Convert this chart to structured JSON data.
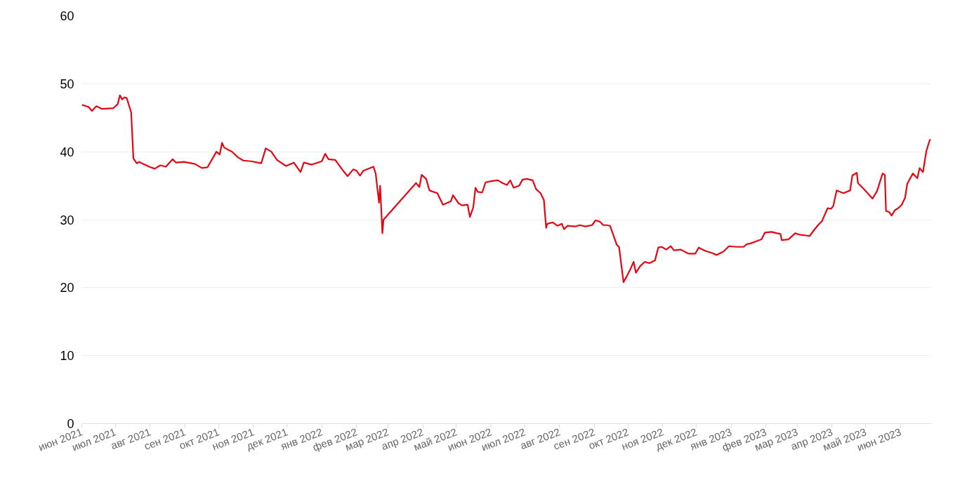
{
  "chart_data": {
    "type": "line",
    "x": [
      "2021-06-01",
      "2021-06-07",
      "2021-06-10",
      "2021-06-14",
      "2021-06-19",
      "2021-06-29",
      "2021-07-03",
      "2021-07-05",
      "2021-07-07",
      "2021-07-09",
      "2021-07-11",
      "2021-07-15",
      "2021-07-17",
      "2021-07-20",
      "2021-07-22",
      "2021-07-31",
      "2021-08-05",
      "2021-08-10",
      "2021-08-15",
      "2021-08-21",
      "2021-08-24",
      "2021-08-31",
      "2021-09-10",
      "2021-09-16",
      "2021-09-21",
      "2021-09-29",
      "2021-10-02",
      "2021-10-04",
      "2021-10-06",
      "2021-10-13",
      "2021-10-18",
      "2021-10-23",
      "2021-10-30",
      "2021-11-08",
      "2021-11-12",
      "2021-11-17",
      "2021-11-22",
      "2021-11-30",
      "2021-12-07",
      "2021-12-13",
      "2021-12-16",
      "2021-12-23",
      "2022-01-01",
      "2022-01-04",
      "2022-01-07",
      "2022-01-13",
      "2022-01-20",
      "2022-01-24",
      "2022-01-29",
      "2022-02-01",
      "2022-02-04",
      "2022-02-07",
      "2022-02-13",
      "2022-02-16",
      "2022-02-18",
      "2022-02-21",
      "2022-02-22",
      "2022-02-24",
      "2022-02-25",
      "2022-03-26",
      "2022-03-29",
      "2022-03-31",
      "2022-04-04",
      "2022-04-07",
      "2022-04-14",
      "2022-04-19",
      "2022-04-26",
      "2022-04-28",
      "2022-05-03",
      "2022-05-06",
      "2022-05-11",
      "2022-05-13",
      "2022-05-16",
      "2022-05-18",
      "2022-05-20",
      "2022-05-24",
      "2022-05-27",
      "2022-06-02",
      "2022-06-07",
      "2022-06-11",
      "2022-06-15",
      "2022-06-18",
      "2022-06-21",
      "2022-06-26",
      "2022-06-29",
      "2022-07-03",
      "2022-07-08",
      "2022-07-11",
      "2022-07-15",
      "2022-07-18",
      "2022-07-20",
      "2022-07-21",
      "2022-07-26",
      "2022-07-30",
      "2022-08-03",
      "2022-08-05",
      "2022-08-08",
      "2022-08-15",
      "2022-08-19",
      "2022-08-24",
      "2022-08-30",
      "2022-09-02",
      "2022-09-06",
      "2022-09-09",
      "2022-09-12",
      "2022-09-15",
      "2022-09-21",
      "2022-09-23",
      "2022-09-27",
      "2022-09-30",
      "2022-10-03",
      "2022-10-06",
      "2022-10-08",
      "2022-10-12",
      "2022-10-16",
      "2022-10-20",
      "2022-10-25",
      "2022-10-28",
      "2022-10-31",
      "2022-11-04",
      "2022-11-08",
      "2022-11-11",
      "2022-11-17",
      "2022-11-24",
      "2022-11-30",
      "2022-12-03",
      "2022-12-09",
      "2022-12-15",
      "2022-12-19",
      "2022-12-25",
      "2022-12-30",
      "2023-01-06",
      "2023-01-12",
      "2023-01-15",
      "2023-01-18",
      "2023-01-23",
      "2023-01-28",
      "2023-01-31",
      "2023-02-06",
      "2023-02-11",
      "2023-02-14",
      "2023-02-15",
      "2023-02-21",
      "2023-02-27",
      "2023-03-03",
      "2023-03-12",
      "2023-03-16",
      "2023-03-20",
      "2023-03-23",
      "2023-03-28",
      "2023-03-31",
      "2023-04-02",
      "2023-04-05",
      "2023-04-08",
      "2023-04-11",
      "2023-04-17",
      "2023-04-19",
      "2023-04-23",
      "2023-04-24",
      "2023-05-01",
      "2023-05-07",
      "2023-05-11",
      "2023-05-16",
      "2023-05-18",
      "2023-05-19",
      "2023-05-22",
      "2023-05-24",
      "2023-05-27",
      "2023-05-30",
      "2023-06-02",
      "2023-06-05",
      "2023-06-07",
      "2023-06-12",
      "2023-06-16",
      "2023-06-18",
      "2023-06-21",
      "2023-06-24",
      "2023-06-27",
      "2023-06-28"
    ],
    "series": [
      {
        "color": "#e30613",
        "values": [
          46.9,
          46.6,
          46.0,
          46.7,
          46.3,
          46.4,
          47.0,
          48.3,
          47.7,
          48.0,
          47.9,
          45.8,
          39.0,
          38.3,
          38.5,
          37.8,
          37.5,
          38.0,
          37.8,
          38.9,
          38.4,
          38.5,
          38.2,
          37.6,
          37.7,
          40.0,
          39.6,
          41.3,
          40.6,
          40.0,
          39.2,
          38.7,
          38.6,
          38.3,
          40.5,
          40.0,
          38.8,
          37.9,
          38.4,
          37.0,
          38.4,
          38.1,
          38.6,
          39.7,
          38.9,
          38.8,
          37.2,
          36.4,
          37.4,
          37.2,
          36.5,
          37.2,
          37.6,
          37.8,
          36.8,
          32.5,
          35.0,
          28.0,
          30.0,
          35.4,
          34.8,
          36.6,
          36.0,
          34.3,
          33.9,
          32.2,
          32.7,
          33.6,
          32.4,
          32.1,
          32.2,
          30.4,
          31.8,
          34.7,
          34.1,
          34.0,
          35.5,
          35.7,
          35.8,
          35.4,
          35.1,
          35.8,
          34.7,
          35.0,
          35.9,
          36.0,
          35.8,
          34.5,
          33.9,
          32.9,
          28.8,
          29.4,
          29.6,
          29.1,
          29.4,
          28.6,
          29.1,
          29.0,
          29.2,
          29.0,
          29.2,
          29.9,
          29.7,
          29.2,
          29.2,
          29.1,
          26.3,
          26.0,
          20.8,
          21.7,
          22.7,
          23.8,
          22.2,
          23.2,
          23.8,
          23.6,
          24.0,
          25.9,
          26.0,
          25.6,
          26.1,
          25.5,
          25.6,
          25.0,
          25.0,
          25.9,
          25.4,
          25.1,
          24.8,
          25.3,
          26.1,
          26.0,
          26.0,
          26.4,
          26.5,
          26.8,
          27.1,
          28.1,
          28.2,
          28.0,
          27.9,
          27.0,
          27.1,
          28.0,
          27.8,
          27.6,
          28.5,
          29.3,
          29.8,
          31.7,
          31.6,
          32.0,
          34.3,
          34.1,
          33.9,
          34.3,
          36.5,
          36.9,
          35.4,
          34.2,
          33.1,
          34.2,
          36.8,
          36.6,
          31.3,
          31.1,
          30.6,
          31.4,
          31.7,
          32.2,
          33.2,
          35.3,
          36.8,
          36.1,
          37.6,
          37.0,
          40.1,
          41.7,
          41.8
        ]
      }
    ],
    "xlim": [
      "2021-06-01",
      "2023-06-28"
    ],
    "xticks": [
      {
        "value": "2021-06-01",
        "label": "июн 2021"
      },
      {
        "value": "2021-07-01",
        "label": "июл 2021"
      },
      {
        "value": "2021-08-01",
        "label": "авг 2021"
      },
      {
        "value": "2021-09-01",
        "label": "сен 2021"
      },
      {
        "value": "2021-10-01",
        "label": "окт 2021"
      },
      {
        "value": "2021-11-01",
        "label": "ноя 2021"
      },
      {
        "value": "2021-12-01",
        "label": "дек 2021"
      },
      {
        "value": "2022-01-01",
        "label": "янв 2022"
      },
      {
        "value": "2022-02-01",
        "label": "фев 2022"
      },
      {
        "value": "2022-03-01",
        "label": "мар 2022"
      },
      {
        "value": "2022-04-01",
        "label": "апр 2022"
      },
      {
        "value": "2022-05-01",
        "label": "май 2022"
      },
      {
        "value": "2022-06-01",
        "label": "июн 2022"
      },
      {
        "value": "2022-07-01",
        "label": "июл 2022"
      },
      {
        "value": "2022-08-01",
        "label": "авг 2022"
      },
      {
        "value": "2022-09-01",
        "label": "сен 2022"
      },
      {
        "value": "2022-10-01",
        "label": "окт 2022"
      },
      {
        "value": "2022-11-01",
        "label": "ноя 2022"
      },
      {
        "value": "2022-12-01",
        "label": "дек 2022"
      },
      {
        "value": "2023-01-01",
        "label": "янв 2023"
      },
      {
        "value": "2023-02-01",
        "label": "фев 2023"
      },
      {
        "value": "2023-03-01",
        "label": "мар 2023"
      },
      {
        "value": "2023-04-01",
        "label": "апр 2023"
      },
      {
        "value": "2023-05-01",
        "label": "май 2023"
      },
      {
        "value": "2023-06-01",
        "label": "июн 2023"
      }
    ],
    "ylim": [
      0,
      60
    ],
    "yticks": [
      0,
      10,
      20,
      30,
      40,
      50,
      60
    ],
    "grid": "y",
    "marker": "none",
    "line_style": "solid"
  }
}
